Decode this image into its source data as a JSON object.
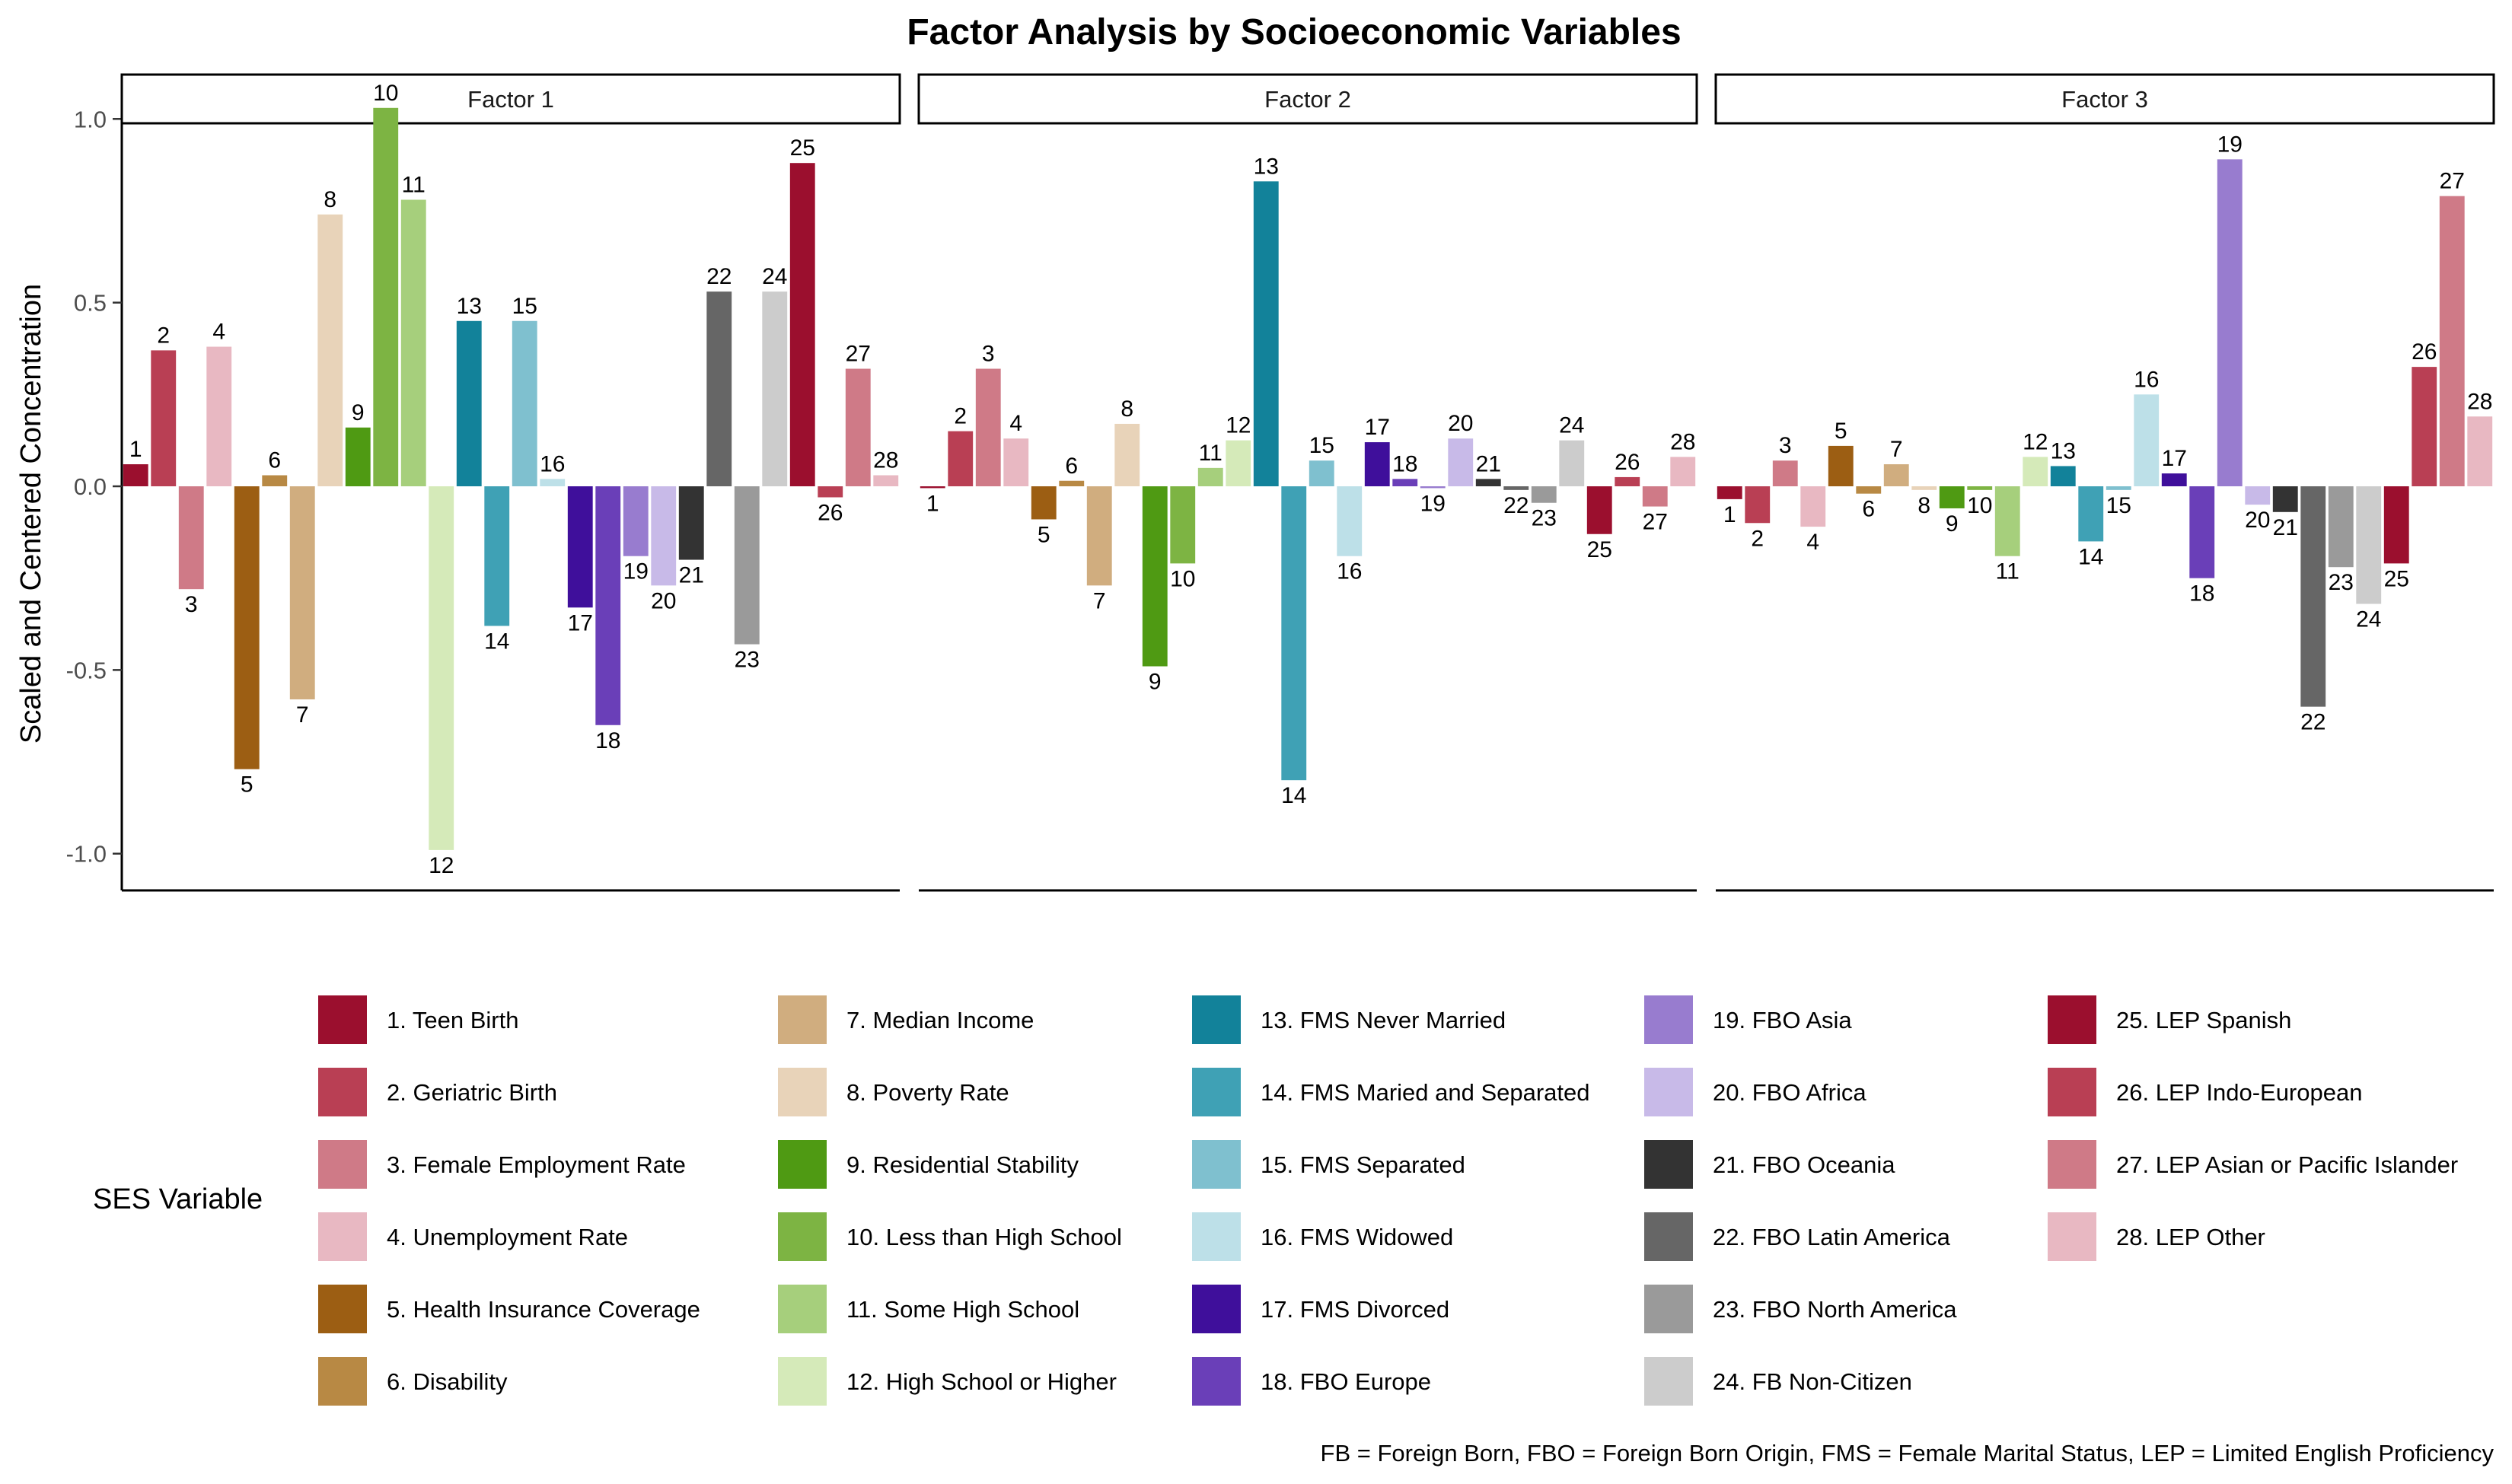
{
  "chart_data": {
    "type": "bar",
    "title": "Factor Analysis by Socioeconomic Variables",
    "ylabel": "Scaled and Centered Concentration",
    "xlabel": "",
    "ylim": [
      -1.1,
      1.1
    ],
    "yticks": [
      -1.0,
      -0.5,
      0.0,
      0.5,
      1.0
    ],
    "ytick_labels": [
      "-1.0",
      "-0.5",
      "0.0",
      "0.5",
      "1.0"
    ],
    "grid": false,
    "legend_title": "SES Variable",
    "legend_position": "bottom",
    "caption": "FB = Foreign Born, FBO = Foreign Born Origin, FMS = Female Marital Status, LEP = Limited English Proficiency",
    "categories": [
      "1",
      "2",
      "3",
      "4",
      "5",
      "6",
      "7",
      "8",
      "9",
      "10",
      "11",
      "12",
      "13",
      "14",
      "15",
      "16",
      "17",
      "18",
      "19",
      "20",
      "21",
      "22",
      "23",
      "24",
      "25",
      "26",
      "27",
      "28"
    ],
    "variables": [
      {
        "id": "1",
        "name": "1. Teen Birth",
        "color": "#9b0f2e"
      },
      {
        "id": "2",
        "name": "2. Geriatric Birth",
        "color": "#b93f54"
      },
      {
        "id": "3",
        "name": "3. Female Employment Rate",
        "color": "#cf7a87"
      },
      {
        "id": "4",
        "name": "4. Unemployment Rate",
        "color": "#e8b8c2"
      },
      {
        "id": "5",
        "name": "5. Health Insurance Coverage",
        "color": "#9c5e13"
      },
      {
        "id": "6",
        "name": "6. Disability",
        "color": "#b88944"
      },
      {
        "id": "7",
        "name": "7. Median Income",
        "color": "#d0ad7f"
      },
      {
        "id": "8",
        "name": "8. Poverty Rate",
        "color": "#e8d3b9"
      },
      {
        "id": "9",
        "name": "9. Residential Stability",
        "color": "#4f9a13"
      },
      {
        "id": "10",
        "name": "10. Less than High School",
        "color": "#7db443"
      },
      {
        "id": "11",
        "name": "11. Some High School",
        "color": "#a6cf7c"
      },
      {
        "id": "12",
        "name": "12. High School or Higher",
        "color": "#d5eab9"
      },
      {
        "id": "13",
        "name": "13. FMS Never Married",
        "color": "#12829a"
      },
      {
        "id": "14",
        "name": "14. FMS Maried and Separated",
        "color": "#3fa1b5"
      },
      {
        "id": "15",
        "name": "15. FMS Separated",
        "color": "#7fc0cf"
      },
      {
        "id": "16",
        "name": "16. FMS Widowed",
        "color": "#bde0e8"
      },
      {
        "id": "17",
        "name": "17. FMS Divorced",
        "color": "#3f0f9b"
      },
      {
        "id": "18",
        "name": "18. FBO Europe",
        "color": "#6a3fb8"
      },
      {
        "id": "19",
        "name": "19. FBO Asia",
        "color": "#987ccf"
      },
      {
        "id": "20",
        "name": "20. FBO Africa",
        "color": "#c8bae8"
      },
      {
        "id": "21",
        "name": "21. FBO Oceania",
        "color": "#333333"
      },
      {
        "id": "22",
        "name": "22. FBO Latin America",
        "color": "#666666"
      },
      {
        "id": "23",
        "name": "23. FBO North America",
        "color": "#9a9a9a"
      },
      {
        "id": "24",
        "name": "24. FB Non-Citizen",
        "color": "#cccccc"
      },
      {
        "id": "25",
        "name": "25. LEP Spanish",
        "color": "#9b0f2e"
      },
      {
        "id": "26",
        "name": "26. LEP Indo-European",
        "color": "#b93f54"
      },
      {
        "id": "27",
        "name": "27. LEP Asian or Pacific Islander",
        "color": "#cf7a87"
      },
      {
        "id": "28",
        "name": "28. LEP Other",
        "color": "#e8b8c2"
      }
    ],
    "series": [
      {
        "name": "Factor 1",
        "values": [
          0.06,
          0.37,
          -0.28,
          0.38,
          -0.77,
          0.03,
          -0.58,
          0.74,
          0.16,
          1.03,
          0.78,
          -0.99,
          0.45,
          -0.38,
          0.45,
          0.02,
          -0.33,
          -0.65,
          -0.19,
          -0.27,
          -0.2,
          0.53,
          -0.43,
          0.53,
          0.88,
          -0.03,
          0.32,
          0.03
        ]
      },
      {
        "name": "Factor 2",
        "values": [
          -0.005,
          0.15,
          0.32,
          0.13,
          -0.09,
          0.015,
          -0.27,
          0.17,
          -0.49,
          -0.21,
          0.05,
          0.125,
          0.83,
          -0.8,
          0.07,
          -0.19,
          0.12,
          0.02,
          -0.005,
          0.13,
          0.02,
          -0.01,
          -0.045,
          0.125,
          -0.13,
          0.025,
          -0.055,
          0.08
        ]
      },
      {
        "name": "Factor 3",
        "values": [
          -0.035,
          -0.1,
          0.07,
          -0.11,
          0.11,
          -0.02,
          0.06,
          -0.01,
          -0.06,
          -0.01,
          -0.19,
          0.08,
          0.055,
          -0.15,
          -0.01,
          0.25,
          0.035,
          -0.25,
          0.89,
          -0.05,
          -0.07,
          -0.6,
          -0.22,
          -0.32,
          -0.21,
          0.325,
          0.79,
          0.19
        ]
      }
    ]
  }
}
